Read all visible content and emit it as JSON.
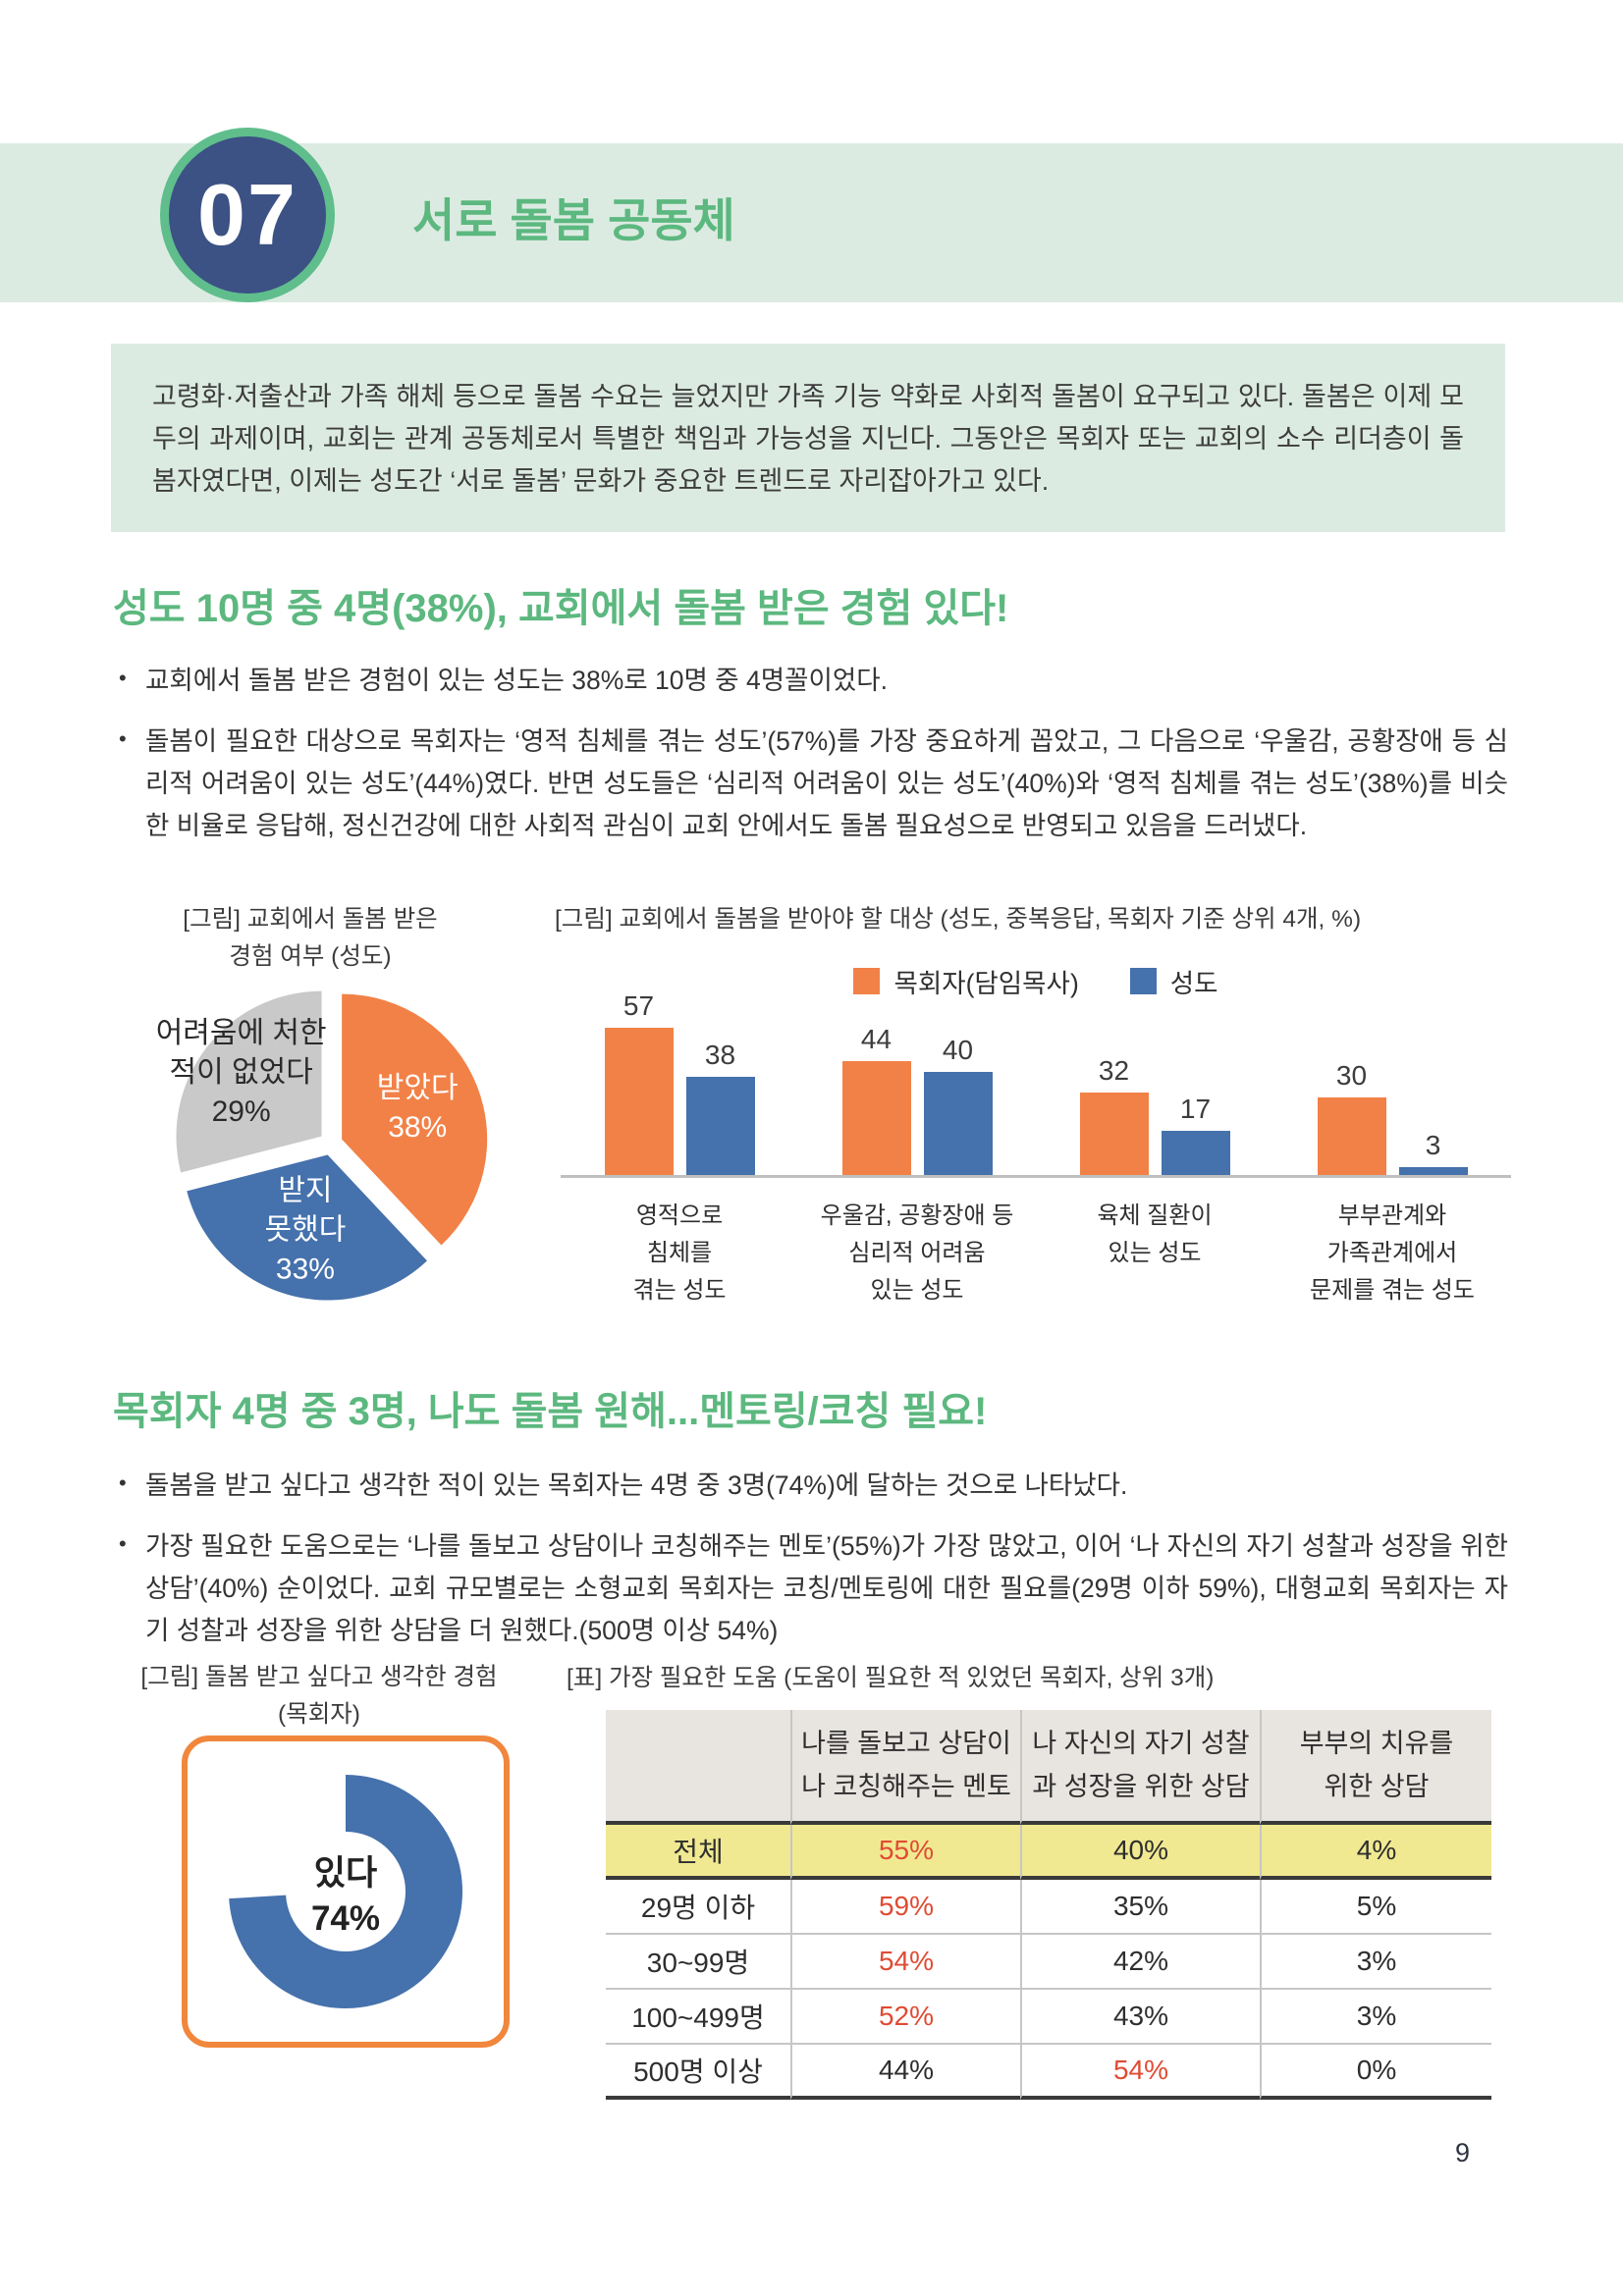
{
  "page": {
    "number": "9"
  },
  "header": {
    "number": "07",
    "title": "서로 돌봄 공동체"
  },
  "intro": {
    "text": "고령화·저출산과 가족 해체 등으로 돌봄 수요는 늘었지만 가족 기능 약화로 사회적 돌봄이 요구되고 있다. 돌봄은 이제 모두의 과제이며, 교회는 관계 공동체로서 특별한 책임과 가능성을 지닌다. 그동안은 목회자 또는 교회의 소수 리더층이 돌봄자였다면, 이제는 성도간 ‘서로 돌봄’ 문화가 중요한 트렌드로 자리잡아가고 있다."
  },
  "section1": {
    "heading": "성도 10명 중 4명(38%), 교회에서 돌봄 받은 경험 있다!",
    "bullets": [
      "교회에서 돌봄 받은 경험이 있는 성도는 38%로 10명 중 4명꼴이었다.",
      "돌봄이 필요한 대상으로 목회자는 ‘영적 침체를 겪는 성도’(57%)를 가장 중요하게 꼽았고, 그 다음으로 ‘우울감, 공황장애 등 심리적 어려움이 있는 성도’(44%)였다. 반면 성도들은 ‘심리적 어려움이 있는 성도’(40%)와 ‘영적 침체를 겪는 성도’(38%)를 비슷한 비율로 응답해, 정신건강에 대한 사회적 관심이 교회 안에서도 돌봄 필요성으로 반영되고 있음을 드러냈다."
    ]
  },
  "section2": {
    "heading": "목회자 4명 중 3명, 나도 돌봄 원해...멘토링/코칭 필요!",
    "bullets": [
      "돌봄을 받고 싶다고 생각한 적이 있는 목회자는 4명 중 3명(74%)에 달하는 것으로 나타났다.",
      "가장 필요한 도움으로는 ‘나를 돌보고 상담이나 코칭해주는 멘토’(55%)가 가장 많았고, 이어 ‘나 자신의 자기 성찰과 성장을 위한 상담’(40%) 순이었다. 교회 규모별로는 소형교회 목회자는 코칭/멘토링에 대한 필요를(29명 이하 59%), 대형교회 목회자는 자기 성찰과 성장을 위한 상담을 더 원했다.(500명 이상 54%)"
    ]
  },
  "colors": {
    "band_green": "#DCEBE2",
    "box_green": "#DCEBE2",
    "accent_green": "#5CB87F",
    "badge_navy": "#3C5184",
    "badge_ring_green": "#5FBE8C",
    "orange": "#F28147",
    "blue": "#4571AC",
    "gray_slice": "#C9C9C9",
    "axis_gray": "#BFBFBF",
    "table_header_bg": "#E8E4E0",
    "table_yellow": "#F0E991",
    "red": "#E04B33",
    "dark_line": "#3A3A3A",
    "donut_box_orange": "#F0873D"
  },
  "chart_data": [
    {
      "id": "care-received-pie",
      "type": "pie",
      "title_lines": [
        "[그림] 교회에서 돌봄 받은",
        "경험 여부 (성도)"
      ],
      "slices": [
        {
          "label": "받았다",
          "value": 38,
          "color": "#F28147",
          "text_color": "#FFFFFF",
          "label_lines": [
            "받았다",
            "38%"
          ]
        },
        {
          "label": "받지 못했다",
          "value": 33,
          "color": "#4571AC",
          "text_color": "#FFFFFF",
          "label_lines": [
            "받지",
            "못했다",
            "33%"
          ]
        },
        {
          "label": "어려움에 처한 적이 없었다",
          "value": 29,
          "color": "#C9C9C9",
          "text_color": "#2B2B2B",
          "label_lines": [
            "어려움에 처한",
            "적이 없었다",
            "29%"
          ]
        }
      ]
    },
    {
      "id": "care-target-bars",
      "type": "bar",
      "title": "[그림] 교회에서 돌봄을 받아야 할 대상 (성도, 중복응답, 목회자 기준 상위 4개, %)",
      "legend_position": "top-center",
      "grid": false,
      "ymax": 61.5,
      "categories": [
        [
          "영적으로",
          "침체를",
          "겪는 성도"
        ],
        [
          "우울감, 공황장애 등",
          "심리적 어려움",
          "있는 성도"
        ],
        [
          "육체 질환이",
          "있는 성도"
        ],
        [
          "부부관계와",
          "가족관계에서",
          "문제를 겪는 성도"
        ]
      ],
      "series": [
        {
          "name": "목회자(담임목사)",
          "color": "#F28147",
          "values": [
            57,
            44,
            32,
            30
          ]
        },
        {
          "name": "성도",
          "color": "#4571AC",
          "values": [
            38,
            40,
            17,
            3
          ]
        }
      ]
    },
    {
      "id": "want-care-donut",
      "type": "donut",
      "title_lines": [
        "[그림] 돌봄 받고 싶다고 생각한 경험",
        "(목회자)"
      ],
      "value": 74,
      "color": "#4571AC",
      "label_lines": [
        "있다",
        "74%"
      ]
    },
    {
      "id": "needed-help-table",
      "type": "table",
      "title": "[표] 가장 필요한 도움 (도움이 필요한 적 있었던 목회자, 상위 3개)",
      "column_header_lines": [
        [
          "나를 돌보고 상담이",
          "나 코칭해주는 멘토"
        ],
        [
          "나 자신의 자기 성찰",
          "과 성장을 위한 상담"
        ],
        [
          "부부의 치유를",
          "위한 상담"
        ]
      ],
      "rows": [
        {
          "label": "전체",
          "values": [
            "55%",
            "40%",
            "4%"
          ],
          "highlight": true,
          "red_index": 0
        },
        {
          "label": "29명 이하",
          "values": [
            "59%",
            "35%",
            "5%"
          ],
          "highlight": false,
          "red_index": 0
        },
        {
          "label": "30~99명",
          "values": [
            "54%",
            "42%",
            "3%"
          ],
          "highlight": false,
          "red_index": 0
        },
        {
          "label": "100~499명",
          "values": [
            "52%",
            "43%",
            "3%"
          ],
          "highlight": false,
          "red_index": 0
        },
        {
          "label": "500명 이상",
          "values": [
            "44%",
            "54%",
            "0%"
          ],
          "highlight": false,
          "red_index": 1
        }
      ]
    }
  ]
}
